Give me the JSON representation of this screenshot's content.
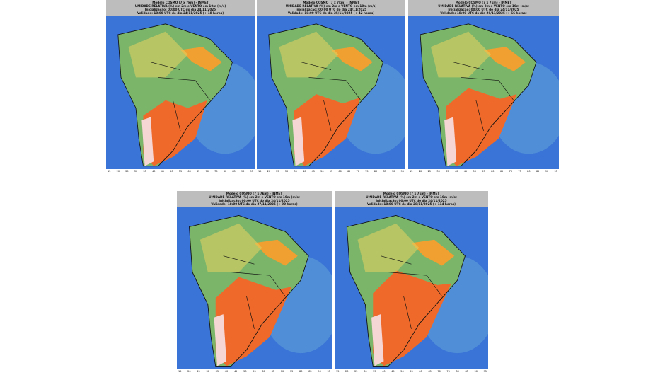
{
  "panels": [
    {
      "model": "Modelo COSMO (7 x 7km) - INMET",
      "variable": "UMIDADE RELATIVA (%) em 2m e VENTO em 10m (m/s)",
      "init": "Inicialização: 00:00 UTC do dia 24/11/2025",
      "valid": "Validade: 18:00 UTC do dia 24/11/2025 (+ 18 horas)"
    },
    {
      "model": "Modelo COSMO (7 x 7km) - INMET",
      "variable": "UMIDADE RELATIVA (%) em 2m e VENTO em 10m (m/s)",
      "init": "Inicialização: 00:00 UTC do dia 24/11/2025",
      "valid": "Validade: 18:00 UTC do dia 25/11/2025 (+ 42 horas)"
    },
    {
      "model": "Modelo COSMO (7 x 7km) - INMET",
      "variable": "UMIDADE RELATIVA (%) em 2m e VENTO em 10m (m/s)",
      "init": "Inicialização: 00:00 UTC do dia 24/11/2025",
      "valid": "Validade: 18:00 UTC do dia 26/11/2025 (+ 66 horas)"
    },
    {
      "model": "Modelo COSMO (7 x 7km) - INMET",
      "variable": "UMIDADE RELATIVA (%) em 2m e VENTO em 10m (m/s)",
      "init": "Inicialização: 00:00 UTC do dia 24/11/2025",
      "valid": "Validade: 18:00 UTC do dia 27/11/2025 (+ 90 horas)"
    },
    {
      "model": "Modelo COSMO (7 x 7km) - INMET",
      "variable": "UMIDADE RELATIVA (%) em 2m e VENTO em 10m (m/s)",
      "init": "Inicialização: 00:00 UTC do dia 24/11/2025",
      "valid": "Validade: 18:00 UTC do dia 28/11/2025 (+ 114 horas)"
    }
  ],
  "colorbar": {
    "ticks": [
      15,
      20,
      25,
      30,
      35,
      40,
      45,
      50,
      55,
      60,
      65,
      70,
      75,
      80,
      85,
      90,
      95
    ]
  }
}
